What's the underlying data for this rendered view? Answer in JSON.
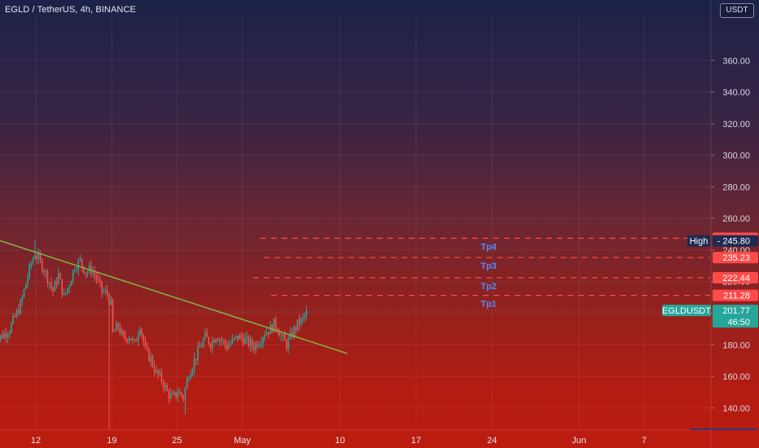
{
  "header": {
    "title": "EGLD / TetherUS, 4h, BINANCE"
  },
  "price_axis": {
    "currency": "USDT"
  },
  "chart_data": {
    "type": "candlestick",
    "symbol": "EGLD / TetherUS",
    "interval": "4h",
    "exchange": "BINANCE",
    "y_ticks": [
      140,
      160,
      180,
      200,
      220,
      240,
      260,
      280,
      300,
      320,
      340,
      360
    ],
    "y_tick_labels": [
      "140.00",
      "160.00",
      "180.00",
      "200.00",
      "220.00",
      "240.00",
      "260.00",
      "280.00",
      "300.00",
      "320.00",
      "340.00",
      "360.00"
    ],
    "ylim": [
      126,
      388
    ],
    "x_ticks": [
      {
        "date": "2021-04-12",
        "label": "12"
      },
      {
        "date": "2021-04-19",
        "label": "19"
      },
      {
        "date": "2021-04-25",
        "label": "25"
      },
      {
        "date": "2021-05-01",
        "label": "May"
      },
      {
        "date": "2021-05-10",
        "label": "10"
      },
      {
        "date": "2021-05-17",
        "label": "17"
      },
      {
        "date": "2021-05-24",
        "label": "24"
      },
      {
        "date": "2021-06-01",
        "label": "Jun"
      },
      {
        "date": "2021-06-07",
        "label": "7"
      }
    ],
    "price_path": [
      [
        "2021-04-08T00:00",
        181
      ],
      [
        "2021-04-09T12:00",
        190
      ],
      [
        "2021-04-10T12:00",
        205
      ],
      [
        "2021-04-11T08:00",
        228
      ],
      [
        "2021-04-11T20:00",
        238
      ],
      [
        "2021-04-12T16:00",
        228
      ],
      [
        "2021-04-13T12:00",
        214
      ],
      [
        "2021-04-14T00:00",
        224
      ],
      [
        "2021-04-14T12:00",
        210
      ],
      [
        "2021-04-15T00:00",
        219
      ],
      [
        "2021-04-15T12:00",
        230
      ],
      [
        "2021-04-16T00:00",
        233
      ],
      [
        "2021-04-16T12:00",
        226
      ],
      [
        "2021-04-17T00:00",
        228
      ],
      [
        "2021-04-17T12:00",
        222
      ],
      [
        "2021-04-18T00:00",
        214
      ],
      [
        "2021-04-18T12:00",
        212
      ],
      [
        "2021-04-18T20:00",
        205
      ],
      [
        "2021-04-19T00:00",
        187
      ],
      [
        "2021-04-19T12:00",
        192
      ],
      [
        "2021-04-20T00:00",
        183
      ],
      [
        "2021-04-20T12:00",
        186
      ],
      [
        "2021-04-21T00:00",
        180
      ],
      [
        "2021-04-21T12:00",
        193
      ],
      [
        "2021-04-22T00:00",
        176
      ],
      [
        "2021-04-22T12:00",
        171
      ],
      [
        "2021-04-23T00:00",
        162
      ],
      [
        "2021-04-23T12:00",
        158
      ],
      [
        "2021-04-24T00:00",
        150
      ],
      [
        "2021-04-24T12:00",
        146
      ],
      [
        "2021-04-25T00:00",
        150
      ],
      [
        "2021-04-25T12:00",
        147
      ],
      [
        "2021-04-26T00:00",
        162
      ],
      [
        "2021-04-26T12:00",
        170
      ],
      [
        "2021-04-27T00:00",
        178
      ],
      [
        "2021-04-27T12:00",
        185
      ],
      [
        "2021-04-28T00:00",
        181
      ],
      [
        "2021-04-28T12:00",
        186
      ],
      [
        "2021-04-29T00:00",
        183
      ],
      [
        "2021-04-29T12:00",
        179
      ],
      [
        "2021-04-30T00:00",
        182
      ],
      [
        "2021-04-30T12:00",
        185
      ],
      [
        "2021-05-01T00:00",
        184
      ],
      [
        "2021-05-01T12:00",
        181
      ],
      [
        "2021-05-02T00:00",
        179
      ],
      [
        "2021-05-02T12:00",
        183
      ],
      [
        "2021-05-03T00:00",
        188
      ],
      [
        "2021-05-03T12:00",
        190
      ],
      [
        "2021-05-03T20:00",
        193
      ],
      [
        "2021-05-04T04:00",
        191
      ],
      [
        "2021-05-04T12:00",
        185
      ],
      [
        "2021-05-05T00:00",
        180
      ],
      [
        "2021-05-05T12:00",
        187
      ],
      [
        "2021-05-06T00:00",
        193
      ],
      [
        "2021-05-06T12:00",
        196
      ],
      [
        "2021-05-06T20:00",
        201.77
      ]
    ],
    "notable_wicks": [
      {
        "time": "2021-04-11T20:00",
        "high": 245.8
      },
      {
        "time": "2021-04-18T16:00",
        "low": 123
      },
      {
        "time": "2021-04-25T16:00",
        "low": 136
      }
    ],
    "trendline": {
      "color": "#7cb342",
      "points": [
        [
          "2021-04-08T00:00",
          247.5
        ],
        [
          "2021-05-10T16:00",
          174.5
        ]
      ]
    },
    "levels": [
      {
        "price": 247.45,
        "label": "247.45",
        "tag": "Tp4",
        "start": "2021-05-02T16:00",
        "color": "#ff4a4a"
      },
      {
        "price": 235.23,
        "label": "235.23",
        "tag": "Tp3",
        "start": "2021-05-03T00:00",
        "color": "#ff4a4a"
      },
      {
        "price": 222.44,
        "label": "222.44",
        "tag": "Tp2",
        "start": "2021-05-02T00:00",
        "color": "#ff4a4a"
      },
      {
        "price": 211.28,
        "label": "211.28",
        "tag": "Tp1",
        "start": "2021-05-03T16:00",
        "color": "#ff4a4a"
      }
    ],
    "high_marker": {
      "label": "High",
      "price": 245.8,
      "price_label": "245.80",
      "color": "#1e2a52"
    },
    "last_price": {
      "symbol": "EGLDUSDT",
      "price": 201.77,
      "price_label": "201.77",
      "countdown": "46:50",
      "color": "#26a69a"
    },
    "colors": {
      "up": "#26a69a",
      "down": "#ef5350",
      "level": "#ff4a4a",
      "tag_text": "#4f8bff"
    }
  }
}
